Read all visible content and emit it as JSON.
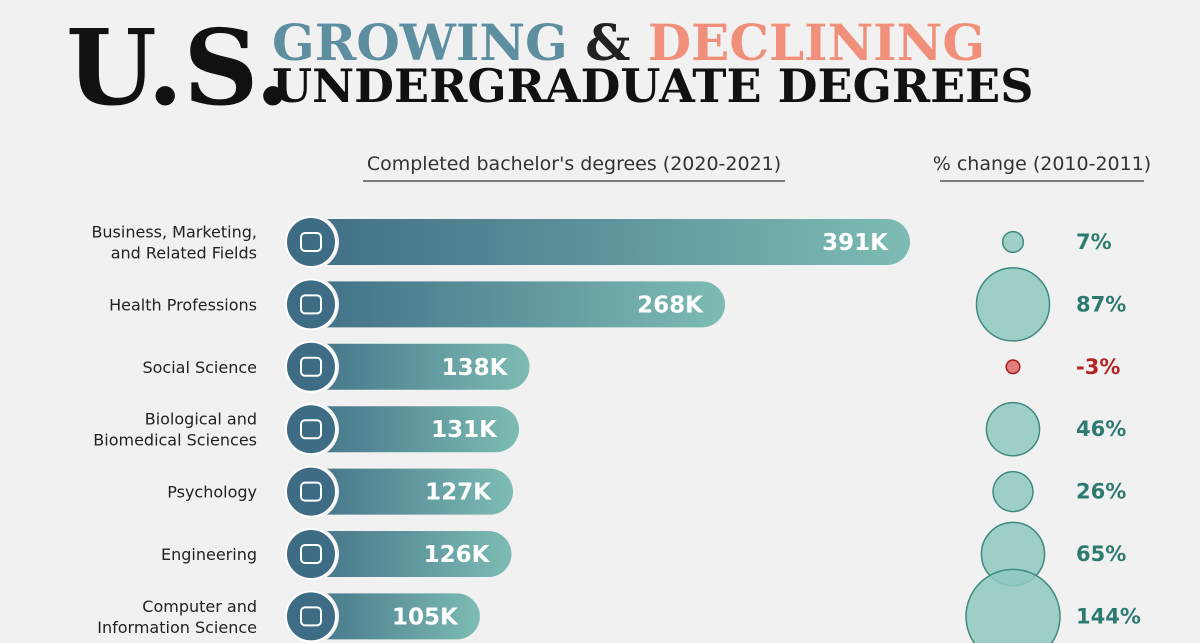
{
  "chart_data": {
    "type": "bar",
    "title": {
      "prefix": "U.S.",
      "growing": "GROWING",
      "amp": "&",
      "declining": "DECLINING",
      "subtitle": "UNDERGRADUATE DEGREES"
    },
    "categories": [
      "Business, Marketing,\nand Related Fields",
      "Health Professions",
      "Social Science",
      "Biological and\nBiomedical Sciences",
      "Psychology",
      "Engineering",
      "Computer and\nInformation Science"
    ],
    "series": [
      {
        "name": "Completed bachelor's degrees (2020-2021)",
        "type": "bar",
        "color": "#5a94a2",
        "values": [
          391000,
          268000,
          138000,
          131000,
          127000,
          126000,
          105000
        ],
        "value_labels": [
          "391K",
          "268K",
          "138K",
          "131K",
          "127K",
          "126K",
          "105K"
        ]
      },
      {
        "name": "% change (2010-2011)",
        "type": "bubble",
        "color": "#8ec9c0",
        "negative_color": "#e06a6a",
        "values": [
          7,
          87,
          -3,
          46,
          26,
          65,
          144
        ],
        "value_labels": [
          "7%",
          "87%",
          "-3%",
          "46%",
          "26%",
          "65%",
          "144%"
        ]
      }
    ]
  }
}
